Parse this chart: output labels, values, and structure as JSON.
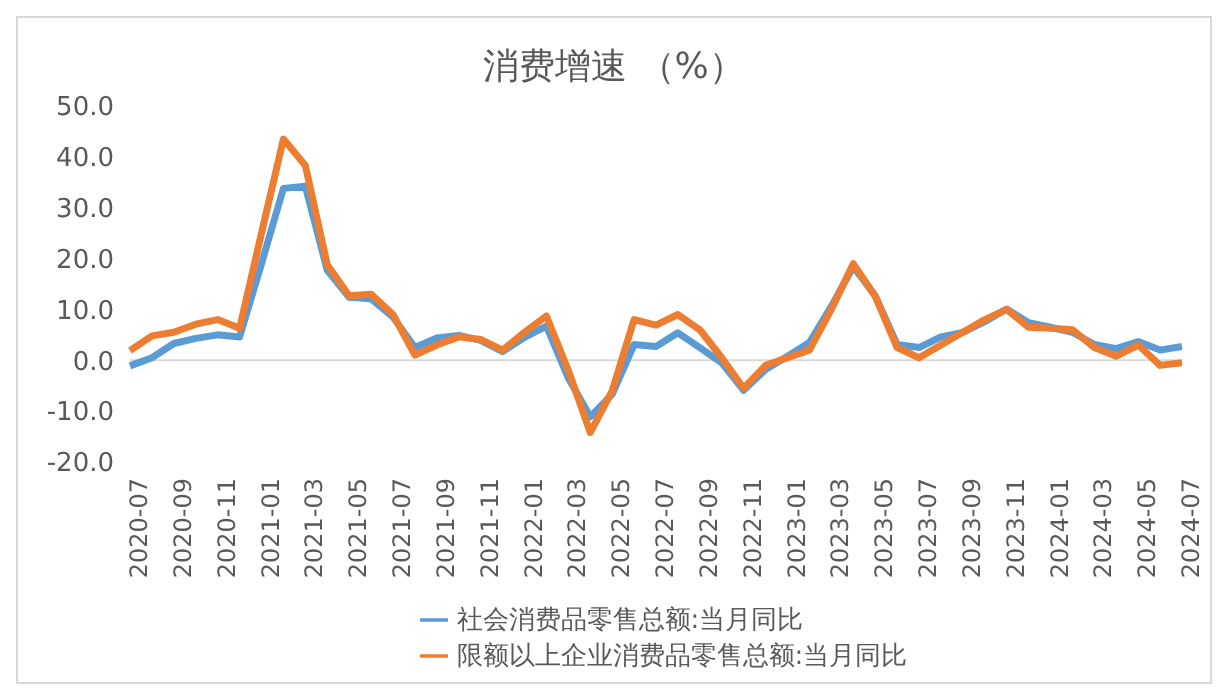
{
  "chart_data": {
    "type": "line",
    "title": "消费增速 （%）",
    "categories": [
      "2020-07",
      null,
      "2020-09",
      null,
      "2020-11",
      null,
      "2021-01",
      null,
      "2021-03",
      null,
      "2021-05",
      null,
      "2021-07",
      null,
      "2021-09",
      null,
      "2021-11",
      null,
      "2022-01",
      null,
      "2022-03",
      null,
      "2022-05",
      null,
      "2022-07",
      null,
      "2022-09",
      null,
      "2022-11",
      null,
      "2023-01",
      null,
      "2023-03",
      null,
      "2023-05",
      null,
      "2023-07",
      null,
      "2023-09",
      null,
      "2023-11",
      null,
      "2024-01",
      null,
      "2024-03",
      null,
      "2024-05",
      null,
      "2024-07"
    ],
    "series": [
      {
        "name": "社会消费品零售总额:当月同比",
        "color": "#5b9bd5",
        "values": [
          -1.1,
          0.5,
          3.3,
          4.3,
          5.0,
          4.6,
          19,
          33.8,
          34.2,
          17.7,
          12.4,
          12.1,
          8.5,
          2.5,
          4.4,
          4.9,
          3.9,
          1.7,
          4.5,
          6.7,
          -3.5,
          -11.1,
          -6.7,
          3.1,
          2.7,
          5.4,
          2.5,
          -0.5,
          -5.9,
          -1.8,
          0.8,
          3.5,
          10.6,
          18.4,
          12.7,
          3.1,
          2.5,
          4.6,
          5.5,
          7.6,
          10.1,
          7.4,
          6.5,
          5.5,
          3.1,
          2.3,
          3.7,
          2.0,
          2.7
        ]
      },
      {
        "name": "限额以上企业消费品零售总额:当月同比",
        "color": "#ed7d31",
        "values": [
          1.9,
          4.8,
          5.5,
          7.1,
          8.0,
          6.3,
          25,
          43.5,
          38.3,
          18.8,
          12.7,
          13.0,
          9.0,
          1.0,
          3.0,
          4.6,
          4.1,
          2.0,
          5.5,
          8.7,
          -2,
          -14.2,
          -6.0,
          8.0,
          6.9,
          9.0,
          6.0,
          0.5,
          -5.5,
          -1.0,
          0.5,
          2.0,
          10,
          19.0,
          12.6,
          2.5,
          0.5,
          3.0,
          5.5,
          8.0,
          10.0,
          6.5,
          6.3,
          6.0,
          2.5,
          0.8,
          3.0,
          -1.0,
          -0.5
        ]
      }
    ],
    "ylim": [
      -20,
      50
    ],
    "yticks": [
      {
        "value": -20,
        "label": "-20.0"
      },
      {
        "value": -10,
        "label": "-10.0"
      },
      {
        "value": 0,
        "label": "0.0"
      },
      {
        "value": 10,
        "label": "10.0"
      },
      {
        "value": 20,
        "label": "20.0"
      },
      {
        "value": 30,
        "label": "30.0"
      },
      {
        "value": 40,
        "label": "40.0"
      },
      {
        "value": 50,
        "label": "50.0"
      }
    ],
    "ref_lines": [
      {
        "axis": "y",
        "value": 0,
        "color": "#d9d9d9"
      }
    ],
    "grid": false,
    "legend": "bottom",
    "marker": "none",
    "line_style": "solid"
  }
}
